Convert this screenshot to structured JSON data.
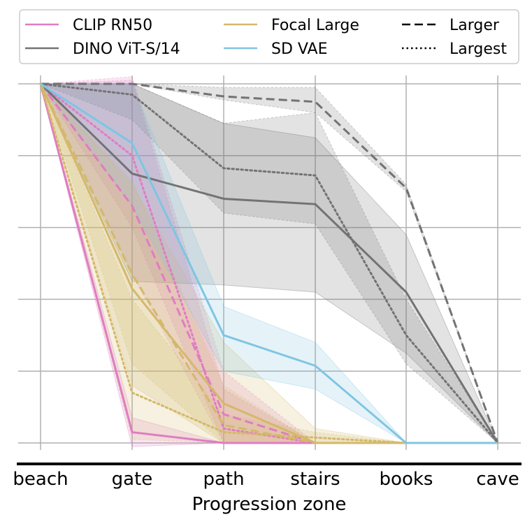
{
  "chart_data": {
    "type": "line",
    "xlabel": "Progression zone",
    "ylabel": "",
    "categories": [
      "beach",
      "gate",
      "path",
      "stairs",
      "books",
      "cave"
    ],
    "ylim": [
      0,
      1
    ],
    "y_gridlines": [
      0,
      0.2,
      0.4,
      0.6,
      0.8,
      1.0
    ],
    "grid": true,
    "legend_placement": "top",
    "colors": {
      "CLIP RN50": "#e07cc3",
      "DINO ViT-S/14": "#737373",
      "Focal Large": "#d4b86a",
      "SD VAE": "#7fc5e3"
    },
    "legend": {
      "models": [
        "CLIP RN50",
        "DINO ViT-S/14",
        "Focal Large",
        "SD VAE"
      ],
      "styles": [
        {
          "label": "Larger",
          "dash": "dashed"
        },
        {
          "label": "Largest",
          "dash": "dotted"
        }
      ]
    },
    "series": [
      {
        "model": "CLIP RN50",
        "style": "solid",
        "values": [
          1.0,
          0.03,
          0.0,
          0.0,
          0.0,
          0.0
        ],
        "lower": [
          1.0,
          -0.01,
          0.0,
          0.0,
          0.0,
          0.0
        ],
        "upper": [
          1.0,
          0.07,
          0.0,
          0.0,
          0.0,
          0.0
        ]
      },
      {
        "model": "CLIP RN50",
        "style": "dashed",
        "values": [
          1.0,
          0.66,
          0.08,
          0.0,
          0.0,
          0.0
        ],
        "lower": [
          1.0,
          0.47,
          0.0,
          0.0,
          0.0,
          0.0
        ],
        "upper": [
          1.0,
          1.02,
          0.2,
          0.0,
          0.0,
          0.0
        ]
      },
      {
        "model": "CLIP RN50",
        "style": "dotted",
        "values": [
          1.0,
          0.8,
          0.04,
          0.0,
          0.0,
          0.0
        ],
        "lower": [
          1.0,
          0.6,
          0.0,
          0.0,
          0.0,
          0.0
        ],
        "upper": [
          1.0,
          1.01,
          0.15,
          0.0,
          0.0,
          0.0
        ]
      },
      {
        "model": "DINO ViT-S/14",
        "style": "solid",
        "values": [
          1.0,
          0.75,
          0.68,
          0.665,
          0.42,
          0.0
        ],
        "lower": [
          1.0,
          0.45,
          0.44,
          0.42,
          0.25,
          0.0
        ],
        "upper": [
          1.0,
          1.0,
          0.89,
          0.85,
          0.58,
          0.0
        ]
      },
      {
        "model": "DINO ViT-S/14",
        "style": "dashed",
        "values": [
          1.0,
          1.0,
          0.965,
          0.95,
          0.71,
          0.0
        ],
        "lower": [
          1.0,
          1.0,
          0.955,
          0.92,
          0.7,
          0.0
        ],
        "upper": [
          1.0,
          1.0,
          0.99,
          0.99,
          0.72,
          0.0
        ]
      },
      {
        "model": "DINO ViT-S/14",
        "style": "dotted",
        "values": [
          1.0,
          0.97,
          0.765,
          0.745,
          0.3,
          0.0
        ],
        "lower": [
          1.0,
          0.9,
          0.64,
          0.61,
          0.22,
          0.0
        ],
        "upper": [
          1.0,
          1.0,
          0.89,
          0.92,
          0.4,
          0.0
        ]
      },
      {
        "model": "Focal Large",
        "style": "solid",
        "values": [
          1.0,
          0.43,
          0.11,
          0.0,
          0.0,
          0.0
        ],
        "lower": [
          1.0,
          0.16,
          0.0,
          0.0,
          0.0,
          0.0
        ],
        "upper": [
          1.0,
          0.72,
          0.28,
          0.04,
          0.0,
          0.0
        ]
      },
      {
        "model": "Focal Large",
        "style": "dashed",
        "values": [
          1.0,
          0.47,
          0.05,
          0.0,
          0.0,
          0.0
        ],
        "lower": [
          1.0,
          0.22,
          0.0,
          0.0,
          0.0,
          0.0
        ],
        "upper": [
          1.0,
          0.73,
          0.16,
          0.0,
          0.0,
          0.0
        ]
      },
      {
        "model": "Focal Large",
        "style": "dotted",
        "values": [
          1.0,
          0.14,
          0.03,
          0.015,
          0.0,
          0.0
        ],
        "lower": [
          1.0,
          0.01,
          0.0,
          0.0,
          0.0,
          0.0
        ],
        "upper": [
          1.0,
          0.4,
          0.08,
          0.03,
          0.0,
          0.0
        ]
      },
      {
        "model": "SD VAE",
        "style": "solid",
        "values": [
          1.0,
          0.835,
          0.3,
          0.215,
          0.0,
          0.0
        ],
        "lower": [
          1.0,
          0.66,
          0.2,
          0.15,
          0.0,
          0.0
        ],
        "upper": [
          1.0,
          1.0,
          0.38,
          0.28,
          0.0,
          0.0
        ]
      }
    ]
  }
}
